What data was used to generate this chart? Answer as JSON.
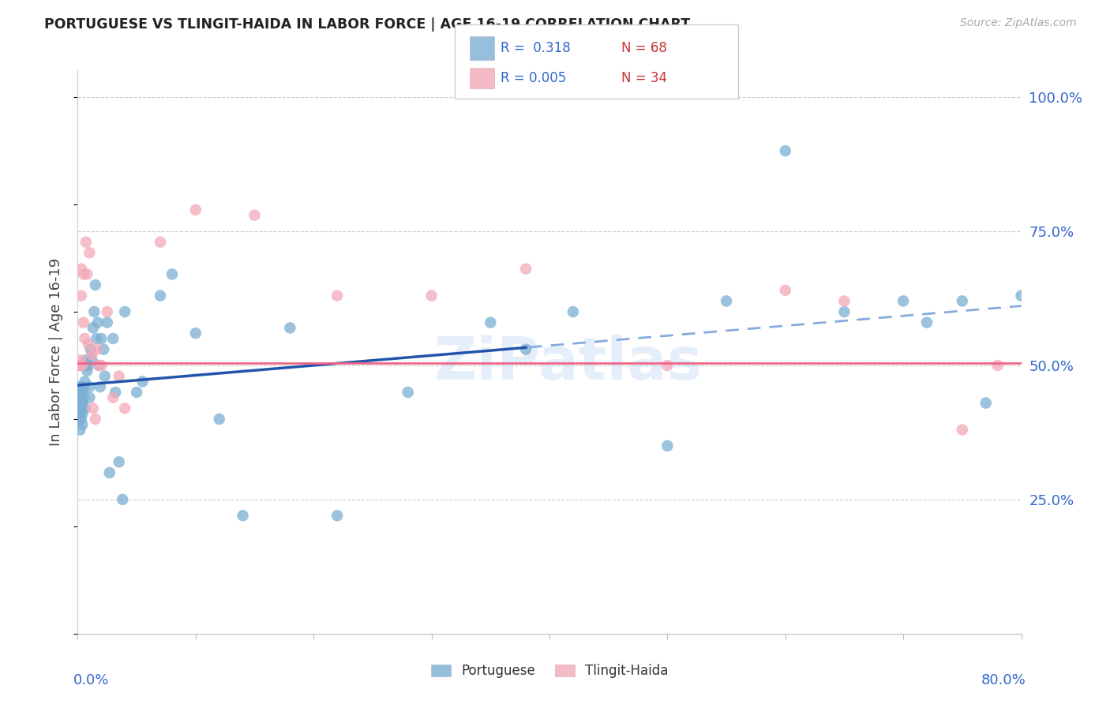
{
  "title": "PORTUGUESE VS TLINGIT-HAIDA IN LABOR FORCE | AGE 16-19 CORRELATION CHART",
  "source": "Source: ZipAtlas.com",
  "ylabel": "In Labor Force | Age 16-19",
  "xlim": [
    0.0,
    0.8
  ],
  "ylim": [
    0.0,
    1.05
  ],
  "portuguese_color": "#7BAFD4",
  "tlingit_color": "#F4A8B8",
  "trend_portuguese_solid_color": "#2255AA",
  "trend_portuguese_dash_color": "#88AADD",
  "trend_tlingit_color": "#EE6688",
  "watermark": "ZiPatlas",
  "portuguese_x": [
    0.001,
    0.001,
    0.001,
    0.002,
    0.002,
    0.002,
    0.002,
    0.002,
    0.003,
    0.003,
    0.003,
    0.003,
    0.003,
    0.004,
    0.004,
    0.004,
    0.004,
    0.005,
    0.005,
    0.006,
    0.006,
    0.007,
    0.007,
    0.008,
    0.009,
    0.01,
    0.01,
    0.011,
    0.012,
    0.013,
    0.014,
    0.015,
    0.016,
    0.017,
    0.018,
    0.019,
    0.02,
    0.022,
    0.023,
    0.025,
    0.027,
    0.03,
    0.032,
    0.035,
    0.038,
    0.04,
    0.05,
    0.055,
    0.07,
    0.08,
    0.1,
    0.12,
    0.14,
    0.18,
    0.22,
    0.28,
    0.35,
    0.38,
    0.42,
    0.5,
    0.55,
    0.6,
    0.65,
    0.7,
    0.72,
    0.75,
    0.77,
    0.8
  ],
  "portuguese_y": [
    0.4,
    0.41,
    0.43,
    0.38,
    0.41,
    0.43,
    0.45,
    0.46,
    0.4,
    0.42,
    0.43,
    0.45,
    0.46,
    0.39,
    0.41,
    0.43,
    0.45,
    0.44,
    0.46,
    0.42,
    0.47,
    0.5,
    0.51,
    0.49,
    0.5,
    0.44,
    0.46,
    0.53,
    0.51,
    0.57,
    0.6,
    0.65,
    0.55,
    0.58,
    0.5,
    0.46,
    0.55,
    0.53,
    0.48,
    0.58,
    0.3,
    0.55,
    0.45,
    0.32,
    0.25,
    0.6,
    0.45,
    0.47,
    0.63,
    0.67,
    0.56,
    0.4,
    0.22,
    0.57,
    0.22,
    0.45,
    0.58,
    0.53,
    0.6,
    0.35,
    0.62,
    0.9,
    0.6,
    0.62,
    0.58,
    0.62,
    0.43,
    0.63
  ],
  "tlingit_x": [
    0.001,
    0.002,
    0.002,
    0.003,
    0.003,
    0.004,
    0.005,
    0.005,
    0.006,
    0.007,
    0.008,
    0.009,
    0.01,
    0.012,
    0.013,
    0.015,
    0.016,
    0.018,
    0.02,
    0.025,
    0.03,
    0.035,
    0.04,
    0.07,
    0.1,
    0.15,
    0.22,
    0.3,
    0.38,
    0.5,
    0.6,
    0.65,
    0.75,
    0.78
  ],
  "tlingit_y": [
    0.5,
    0.51,
    0.5,
    0.68,
    0.63,
    0.5,
    0.67,
    0.58,
    0.55,
    0.73,
    0.67,
    0.54,
    0.71,
    0.52,
    0.42,
    0.4,
    0.53,
    0.5,
    0.5,
    0.6,
    0.44,
    0.48,
    0.42,
    0.73,
    0.79,
    0.78,
    0.63,
    0.63,
    0.68,
    0.5,
    0.64,
    0.62,
    0.38,
    0.5
  ],
  "solid_line_end_x": 0.38,
  "ytick_labels": [
    "25.0%",
    "50.0%",
    "75.0%",
    "100.0%"
  ],
  "ytick_vals": [
    0.25,
    0.5,
    0.75,
    1.0
  ]
}
